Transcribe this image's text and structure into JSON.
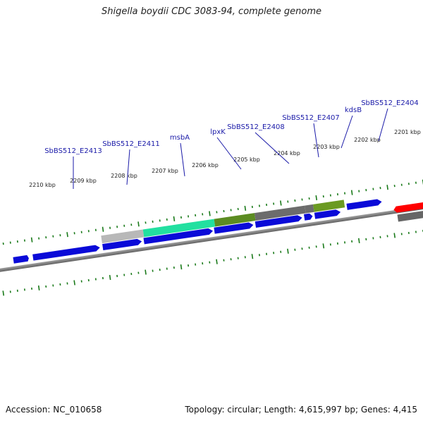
{
  "title": "Shigella boydii CDC 3083-94, complete genome",
  "footer": {
    "accession": "Accession: NC_010658",
    "summary": "Topology: circular; Length: 4,615,997 bp; Genes: 4,415"
  },
  "colors": {
    "cds": "#0a0ad8",
    "backbone": "#808080",
    "tick": "#1a7a1a",
    "label": "#1a1aa8",
    "highlight": "#ff0000"
  },
  "kbp_labels": [
    "2210 kbp",
    "2209 kbp",
    "2208 kbp",
    "2207 kbp",
    "2206 kbp",
    "2205 kbp",
    "2204 kbp",
    "2203 kbp",
    "2202 kbp",
    "2201 kbp"
  ],
  "gene_labels": [
    "SbBS512_E2413",
    "SbBS512_E2411",
    "msbA",
    "lpxK",
    "SbBS512_E2408",
    "SbBS512_E2407",
    "kdsB",
    "SbBS512_E2404"
  ]
}
